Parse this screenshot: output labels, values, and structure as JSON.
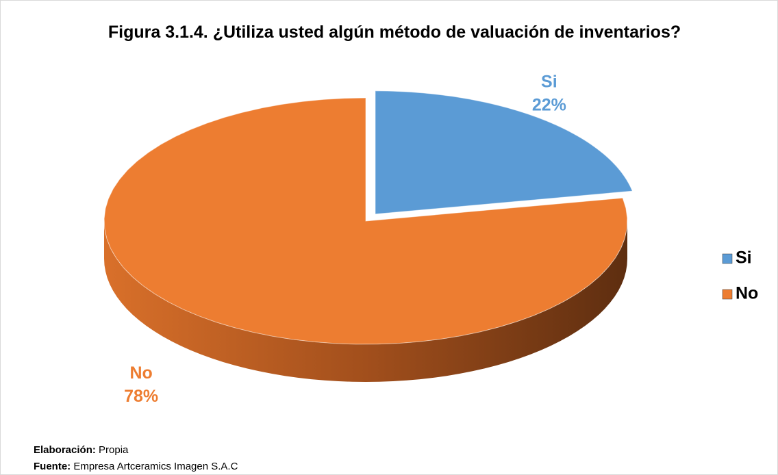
{
  "chart_data": {
    "type": "pie",
    "title": "Figura 3.1.4. ¿Utiliza usted algún método de valuación de inventarios?",
    "categories": [
      "Si",
      "No"
    ],
    "values": [
      22,
      78
    ],
    "value_labels": [
      "22%",
      "78%"
    ],
    "colors": [
      "#5b9bd5",
      "#ed7d31"
    ],
    "legend": "right",
    "credits": [
      {
        "label": "Elaboración:",
        "text": "Propia"
      },
      {
        "label": "Fuente:",
        "text": "Empresa Artceramics Imagen S.A.C"
      }
    ]
  }
}
